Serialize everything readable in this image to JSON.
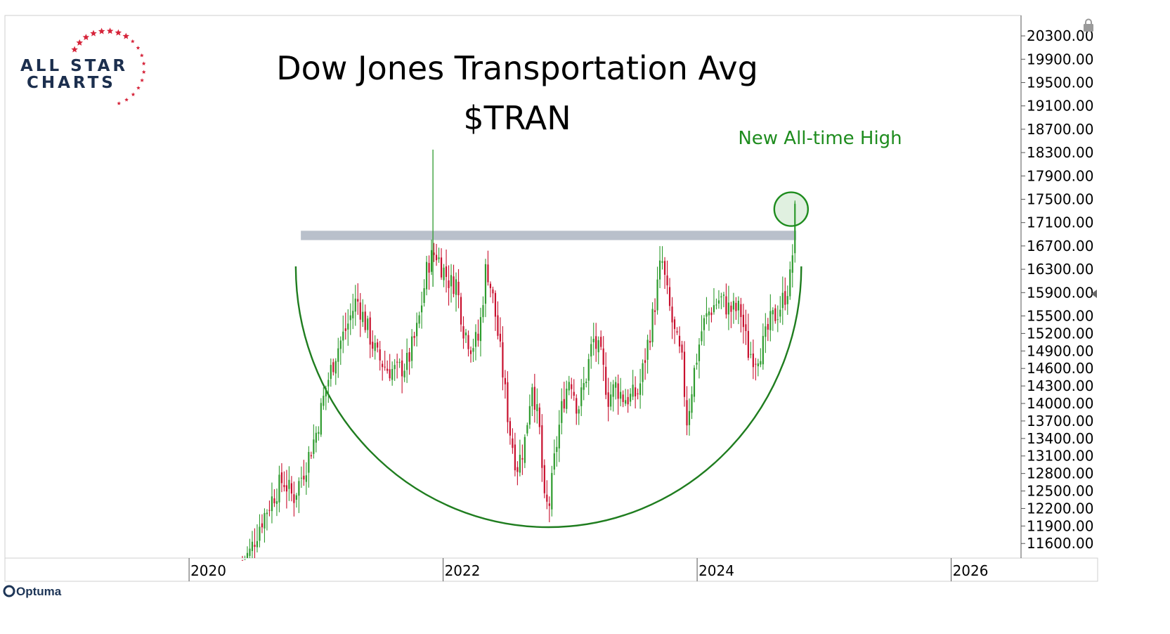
{
  "brand": {
    "logo_line1": "ALL STAR",
    "logo_line2": "CHARTS",
    "footer": "Optuma"
  },
  "colors": {
    "up": "#2e9b2e",
    "down": "#c8102e",
    "arc": "#1f7d1f",
    "resistance": "#b9c0cb",
    "annotation": "#1e8c1e",
    "logo_star": "#d6243a",
    "logo_text": "#1c2f4e"
  },
  "chart_data": {
    "type": "candlestick",
    "title": "Dow Jones Transportation Avg",
    "subtitle": "$TRAN",
    "x_range": [
      2018.55,
      2026.55
    ],
    "y_range": [
      11350,
      20650
    ],
    "x_ticks": [
      {
        "label": "2020",
        "value": 2020
      },
      {
        "label": "2022",
        "value": 2022
      },
      {
        "label": "2024",
        "value": 2024
      },
      {
        "label": "2026",
        "value": 2026
      }
    ],
    "y_ticks": [
      {
        "label": "20300.00",
        "value": 20300
      },
      {
        "label": "19900.00",
        "value": 19900
      },
      {
        "label": "19500.00",
        "value": 19500
      },
      {
        "label": "19100.00",
        "value": 19100
      },
      {
        "label": "18700.00",
        "value": 18700
      },
      {
        "label": "18300.00",
        "value": 18300
      },
      {
        "label": "17900.00",
        "value": 17900
      },
      {
        "label": "17500.00",
        "value": 17500
      },
      {
        "label": "17100.00",
        "value": 17100
      },
      {
        "label": "16700.00",
        "value": 16700
      },
      {
        "label": "16300.00",
        "value": 16300
      },
      {
        "label": "15900.00",
        "value": 15900
      },
      {
        "label": "15500.00",
        "value": 15500
      },
      {
        "label": "15200.00",
        "value": 15200
      },
      {
        "label": "14900.00",
        "value": 14900
      },
      {
        "label": "14600.00",
        "value": 14600
      },
      {
        "label": "14300.00",
        "value": 14300
      },
      {
        "label": "14000.00",
        "value": 14000
      },
      {
        "label": "13700.00",
        "value": 13700
      },
      {
        "label": "13400.00",
        "value": 13400
      },
      {
        "label": "13100.00",
        "value": 13100
      },
      {
        "label": "12800.00",
        "value": 12800
      },
      {
        "label": "12500.00",
        "value": 12500
      },
      {
        "label": "12200.00",
        "value": 12200
      },
      {
        "label": "11900.00",
        "value": 11900
      },
      {
        "label": "11600.00",
        "value": 11600
      }
    ],
    "resistance_zone": {
      "x_start": 2020.88,
      "x_end": 2024.78,
      "y_low": 16800,
      "y_high": 16960
    },
    "cup_arc": {
      "x_start": 2020.84,
      "x_bottom": 2022.95,
      "x_end": 2024.82,
      "y_top": 16350,
      "y_bottom": 11880
    },
    "annotation": {
      "text": "New All-time High",
      "x": 2024.74,
      "y": 17330
    },
    "anchors": [
      [
        2020.42,
        11310
      ],
      [
        2020.48,
        11450
      ],
      [
        2020.56,
        11950
      ],
      [
        2020.66,
        12400
      ],
      [
        2020.74,
        12700
      ],
      [
        2020.82,
        12380
      ],
      [
        2020.92,
        12950
      ],
      [
        2021.0,
        13500
      ],
      [
        2021.08,
        14300
      ],
      [
        2021.16,
        14900
      ],
      [
        2021.24,
        15300
      ],
      [
        2021.32,
        15800
      ],
      [
        2021.4,
        15300
      ],
      [
        2021.48,
        14800
      ],
      [
        2021.56,
        14600
      ],
      [
        2021.64,
        14550
      ],
      [
        2021.72,
        14700
      ],
      [
        2021.8,
        15300
      ],
      [
        2021.88,
        16400
      ],
      [
        2021.94,
        16600
      ],
      [
        2022.0,
        16300
      ],
      [
        2022.06,
        16050
      ],
      [
        2022.1,
        16100
      ],
      [
        2022.16,
        15300
      ],
      [
        2022.22,
        15000
      ],
      [
        2022.28,
        15100
      ],
      [
        2022.34,
        16400
      ],
      [
        2022.4,
        15700
      ],
      [
        2022.46,
        14700
      ],
      [
        2022.52,
        13600
      ],
      [
        2022.58,
        12900
      ],
      [
        2022.64,
        13300
      ],
      [
        2022.7,
        14400
      ],
      [
        2022.76,
        13500
      ],
      [
        2022.8,
        12200
      ],
      [
        2022.84,
        12300
      ],
      [
        2022.88,
        13100
      ],
      [
        2022.94,
        14000
      ],
      [
        2023.0,
        14500
      ],
      [
        2023.06,
        13900
      ],
      [
        2023.12,
        14400
      ],
      [
        2023.18,
        15100
      ],
      [
        2023.24,
        14800
      ],
      [
        2023.3,
        14100
      ],
      [
        2023.36,
        14300
      ],
      [
        2023.42,
        14100
      ],
      [
        2023.48,
        14100
      ],
      [
        2023.54,
        14200
      ],
      [
        2023.6,
        14900
      ],
      [
        2023.66,
        15600
      ],
      [
        2023.72,
        16500
      ],
      [
        2023.76,
        15900
      ],
      [
        2023.82,
        15200
      ],
      [
        2023.88,
        14700
      ],
      [
        2023.92,
        13700
      ],
      [
        2023.98,
        14600
      ],
      [
        2024.04,
        15300
      ],
      [
        2024.1,
        15600
      ],
      [
        2024.18,
        15800
      ],
      [
        2024.26,
        15600
      ],
      [
        2024.34,
        15600
      ],
      [
        2024.4,
        14900
      ],
      [
        2024.46,
        14800
      ],
      [
        2024.52,
        15000
      ],
      [
        2024.58,
        15400
      ],
      [
        2024.64,
        15600
      ],
      [
        2024.7,
        15900
      ],
      [
        2024.74,
        16200
      ],
      [
        2024.77,
        17250
      ]
    ]
  }
}
